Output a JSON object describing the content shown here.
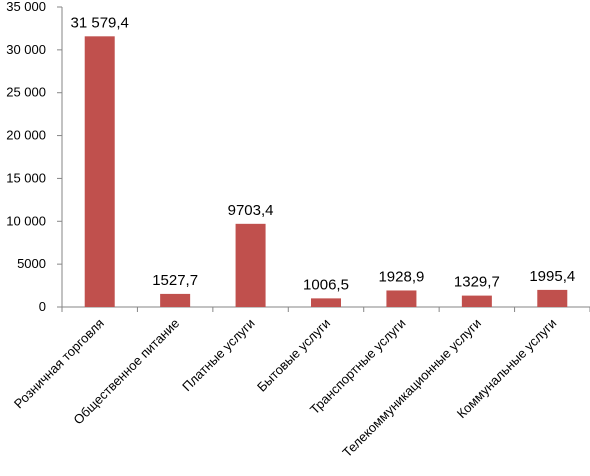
{
  "chart_data": {
    "type": "bar",
    "title": "",
    "xlabel": "",
    "ylabel": "",
    "categories": [
      "Розничная торговля",
      "Общественное питание",
      "Платные услуги",
      "Бытовые услуги",
      "Транспортные услуги",
      "Телекоммуникационные услуги",
      "Коммунальные услуги"
    ],
    "values": [
      31579.4,
      1527.7,
      9703.4,
      1006.5,
      1928.9,
      1329.7,
      1995.4
    ],
    "data_labels": [
      "31 579,4",
      "1527,7",
      "9703,4",
      "1006,5",
      "1928,9",
      "1329,7",
      "1995,4"
    ],
    "ylim": [
      0,
      35000
    ],
    "yticks": [
      0,
      5000,
      10000,
      15000,
      20000,
      25000,
      30000,
      35000
    ],
    "ytick_labels": [
      "0",
      "5000",
      "10 000",
      "15 000",
      "20 000",
      "25 000",
      "30 000",
      "35 000"
    ],
    "grid": false,
    "legend": "none",
    "bar_color": "#C0504D"
  }
}
